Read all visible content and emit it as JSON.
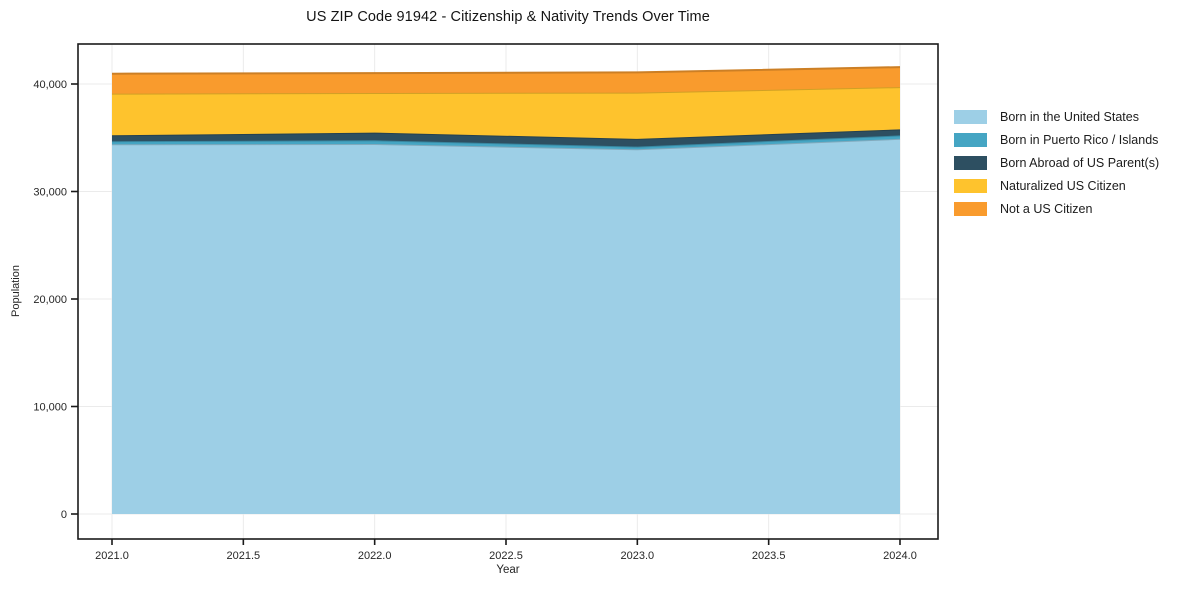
{
  "chart_data": {
    "type": "area",
    "stacked": true,
    "title": "US ZIP Code 91942 - Citizenship & Nativity Trends Over Time",
    "xlabel": "Year",
    "ylabel": "Population",
    "x": [
      2021,
      2022,
      2023,
      2024
    ],
    "series": [
      {
        "name": "Born in the United States",
        "color": "#9dcfe6",
        "values": [
          34400,
          34420,
          33930,
          34900
        ]
      },
      {
        "name": "Born in Puerto Rico / Islands",
        "color": "#45a5c3",
        "values": [
          280,
          340,
          250,
          320
        ]
      },
      {
        "name": "Born Abroad of US Parent(s)",
        "color": "#2d4f61",
        "values": [
          550,
          720,
          710,
          560
        ]
      },
      {
        "name": "Naturalized US Citizen",
        "color": "#fec32d",
        "values": [
          3880,
          3680,
          4310,
          3930
        ]
      },
      {
        "name": "Not a US Citizen",
        "color": "#f99b2d",
        "values": [
          1850,
          1850,
          1880,
          1860
        ]
      }
    ],
    "x_ticks": [
      2021.0,
      2021.5,
      2022.0,
      2022.5,
      2023.0,
      2023.5,
      2024.0
    ],
    "x_tick_labels": [
      "2021.0",
      "2021.5",
      "2022.0",
      "2022.5",
      "2023.0",
      "2023.5",
      "2024.0"
    ],
    "y_ticks": [
      0,
      10000,
      20000,
      30000,
      40000
    ],
    "y_tick_labels": [
      "0",
      "10,000",
      "20,000",
      "30,000",
      "40,000"
    ],
    "xlim": [
      2020.87,
      2024.14
    ],
    "ylim": [
      -2325,
      43720
    ],
    "grid": true,
    "legend_position": "right",
    "grid_color": "#ebebeb",
    "axis_color": "#1a1a1a"
  }
}
